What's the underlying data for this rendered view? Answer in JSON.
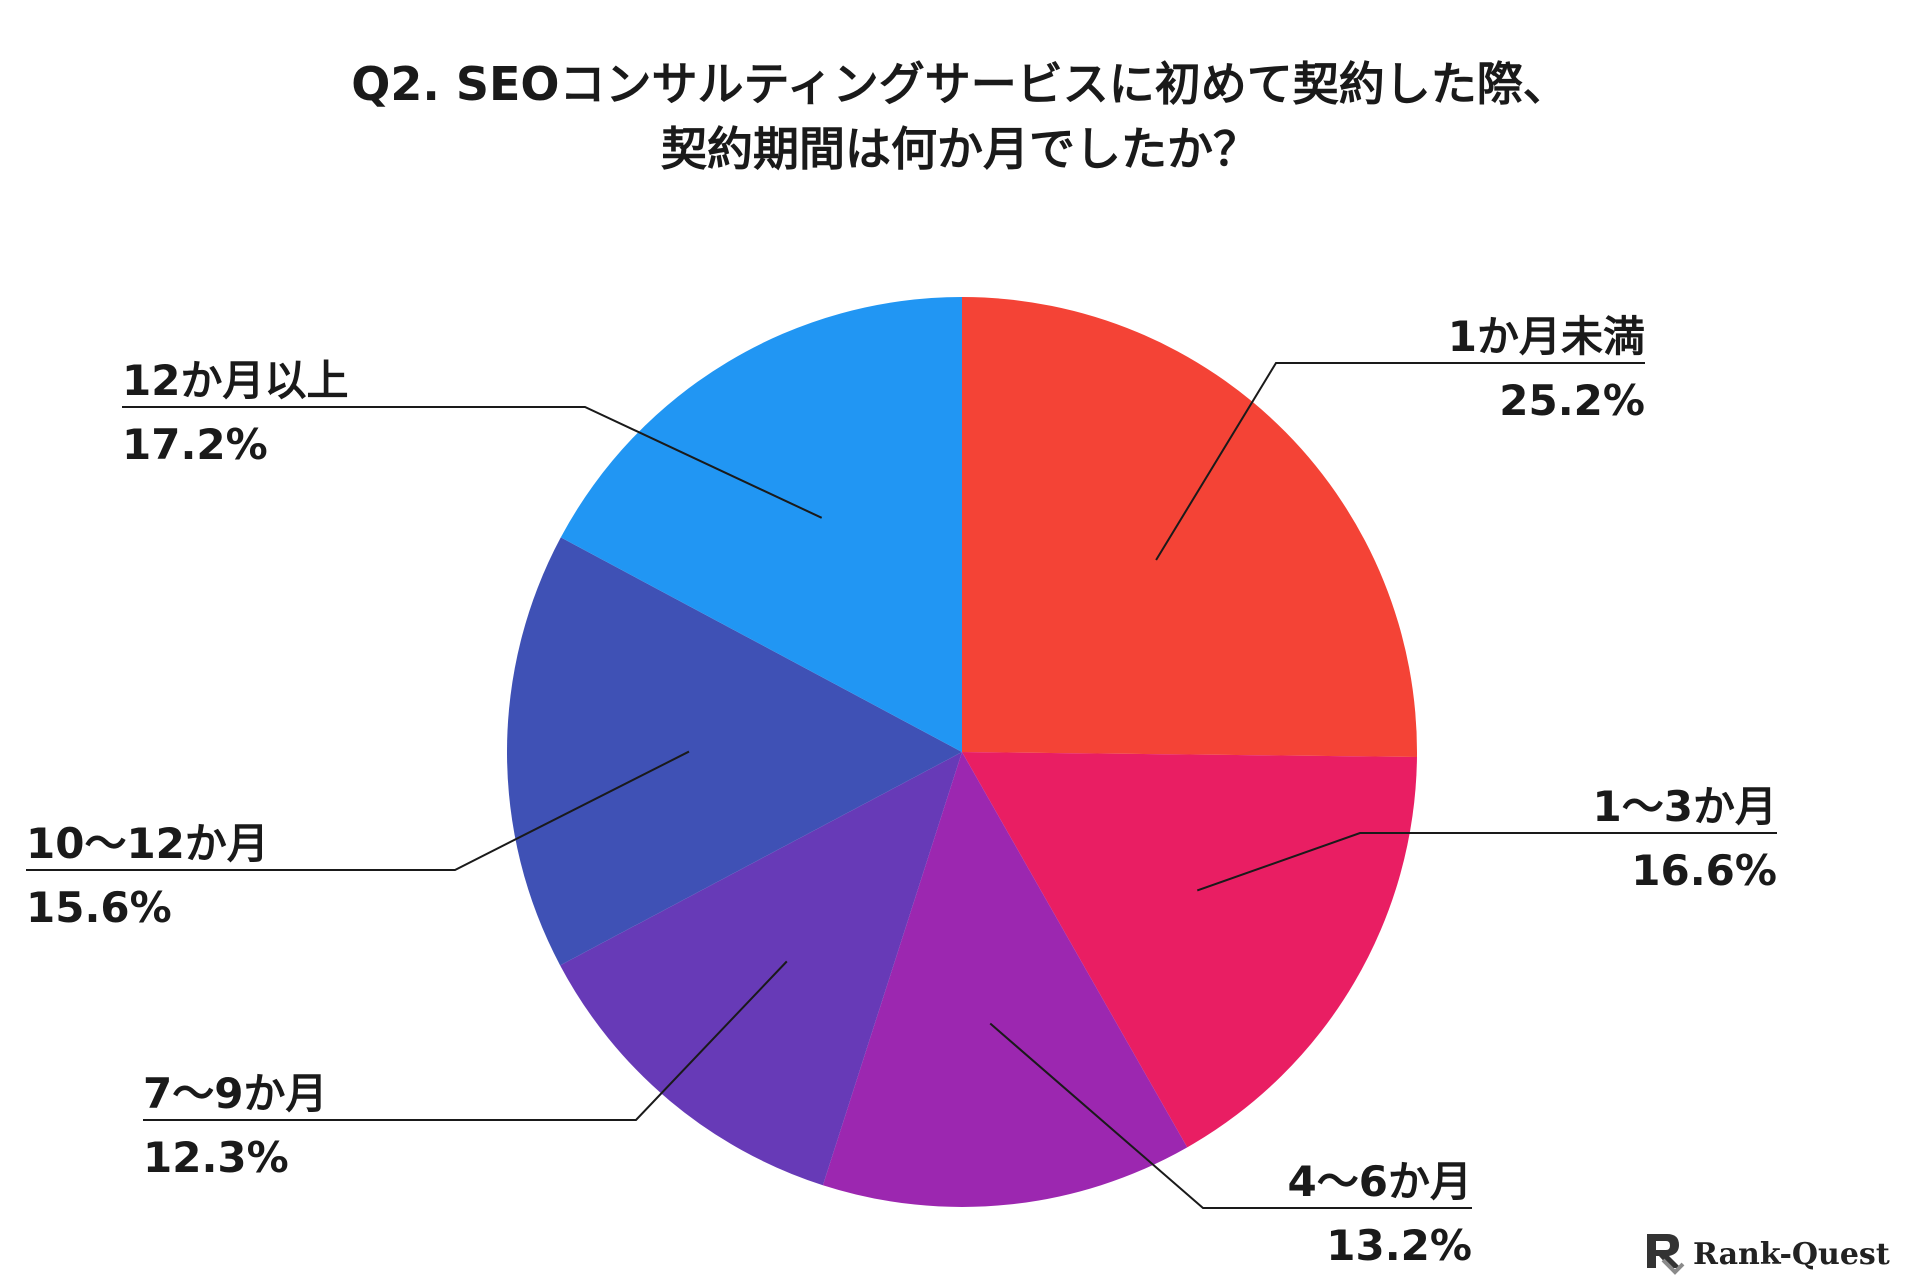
{
  "chart_data": {
    "type": "pie",
    "title": [
      "Q2. SEOコンサルティングサービスに初めて契約した際、",
      "契約期間は何か月でしたか？"
    ],
    "start": "12 o'clock",
    "direction": "clockwise",
    "slices": [
      {
        "label": "1か月未満",
        "value": 25.2,
        "value_label": "25.2%",
        "color": "#F44336",
        "label_side": "right"
      },
      {
        "label": "1〜3か月",
        "value": 16.6,
        "value_label": "16.6%",
        "color": "#E91E63",
        "label_side": "right"
      },
      {
        "label": "4〜6か月",
        "value": 13.2,
        "value_label": "13.2%",
        "color": "#9C27B0",
        "label_side": "right"
      },
      {
        "label": "7〜9か月",
        "value": 12.3,
        "value_label": "12.3%",
        "color": "#673AB7",
        "label_side": "left"
      },
      {
        "label": "10〜12か月",
        "value": 15.6,
        "value_label": "15.6%",
        "color": "#3F51B5",
        "label_side": "left"
      },
      {
        "label": "12か月以上",
        "value": 17.2,
        "value_label": "17.2%",
        "color": "#2196F3",
        "label_side": "left"
      }
    ]
  },
  "logo": {
    "text": "Rank-Quest",
    "icon": "rank-quest-logo-icon"
  }
}
